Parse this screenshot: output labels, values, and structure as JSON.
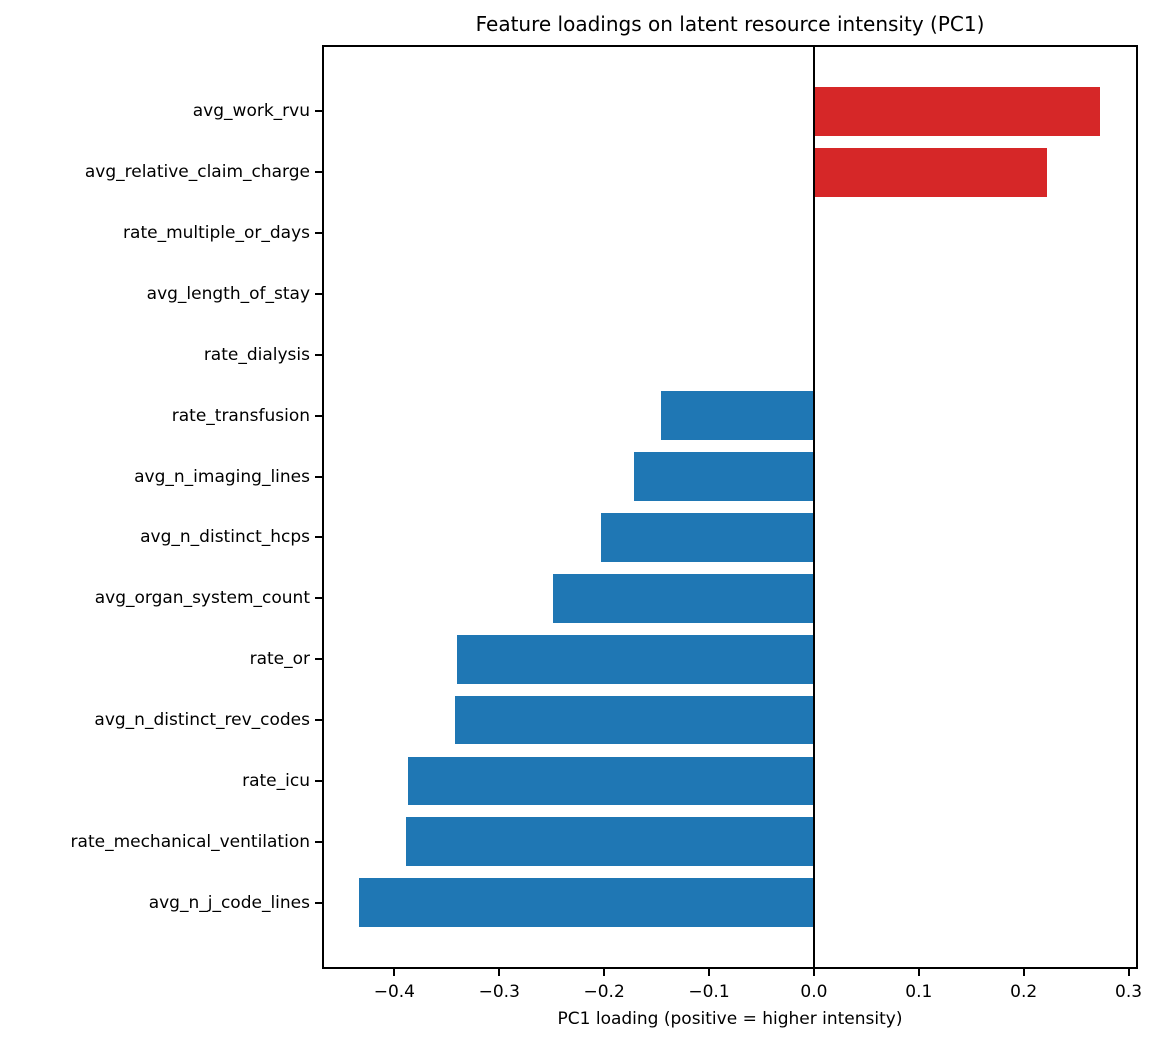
{
  "chart_data": {
    "type": "bar",
    "orientation": "horizontal",
    "title": "Feature loadings on latent resource intensity (PC1)",
    "xlabel": "PC1 loading (positive = higher intensity)",
    "ylabel": "",
    "categories": [
      "avg_work_rvu",
      "avg_relative_claim_charge",
      "rate_multiple_or_days",
      "avg_length_of_stay",
      "rate_dialysis",
      "rate_transfusion",
      "avg_n_imaging_lines",
      "avg_n_distinct_hcps",
      "avg_organ_system_count",
      "rate_or",
      "avg_n_distinct_rev_codes",
      "rate_icu",
      "rate_mechanical_ventilation",
      "avg_n_j_code_lines"
    ],
    "values": [
      0.273,
      0.222,
      0.0,
      0.0,
      0.0,
      -0.146,
      -0.172,
      -0.203,
      -0.249,
      -0.34,
      -0.342,
      -0.387,
      -0.389,
      -0.434
    ],
    "xlim": [
      -0.469,
      0.309
    ],
    "xticks": [
      -0.4,
      -0.3,
      -0.2,
      -0.1,
      0.0,
      0.1,
      0.2,
      0.3
    ],
    "xtick_labels": [
      "−0.4",
      "−0.3",
      "−0.2",
      "−0.1",
      "0.0",
      "0.1",
      "0.2",
      "0.3"
    ],
    "zero_line": true,
    "grid": false,
    "legend": null
  },
  "colors": {
    "positive_bar": "#d62728",
    "negative_bar": "#1f77b4",
    "axis": "#000000",
    "background": "#ffffff"
  }
}
